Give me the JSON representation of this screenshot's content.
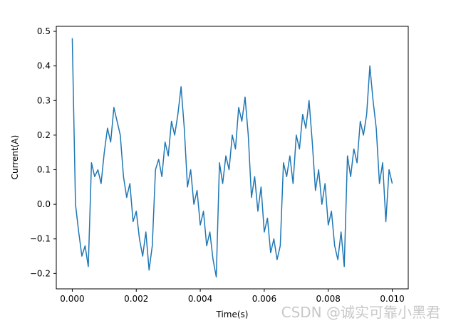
{
  "chart_data": {
    "type": "line",
    "xlabel": "Time(s)",
    "ylabel": "Current(A)",
    "x": [
      0,
      0.0001,
      0.0002,
      0.0003,
      0.0004,
      0.0005,
      0.0006,
      0.0007,
      0.0008,
      0.0009,
      0.001,
      0.0011,
      0.0012,
      0.0013,
      0.0014,
      0.0015,
      0.0016,
      0.0017,
      0.0018,
      0.0019,
      0.002,
      0.0021,
      0.0022,
      0.0023,
      0.0024,
      0.0025,
      0.0026,
      0.0027,
      0.0028,
      0.0029,
      0.003,
      0.0031,
      0.0032,
      0.0033,
      0.0034,
      0.0035,
      0.0036,
      0.0037,
      0.0038,
      0.0039,
      0.004,
      0.0041,
      0.0042,
      0.0043,
      0.0044,
      0.0045,
      0.0046,
      0.0047,
      0.0048,
      0.0049,
      0.005,
      0.0051,
      0.0052,
      0.0053,
      0.0054,
      0.0055,
      0.0056,
      0.0057,
      0.0058,
      0.0059,
      0.006,
      0.0061,
      0.0062,
      0.0063,
      0.0064,
      0.0065,
      0.0066,
      0.0067,
      0.0068,
      0.0069,
      0.007,
      0.0071,
      0.0072,
      0.0073,
      0.0074,
      0.0075,
      0.0076,
      0.0077,
      0.0078,
      0.0079,
      0.008,
      0.0081,
      0.0082,
      0.0083,
      0.0084,
      0.0085,
      0.0086,
      0.0087,
      0.0088,
      0.0089,
      0.009,
      0.0091,
      0.0092,
      0.0093,
      0.0094,
      0.0095,
      0.0096,
      0.0097,
      0.0098,
      0.0099,
      0.01
    ],
    "values": [
      0.48,
      0.0,
      -0.08,
      -0.15,
      -0.12,
      -0.18,
      0.12,
      0.08,
      0.1,
      0.06,
      0.15,
      0.22,
      0.18,
      0.28,
      0.24,
      0.2,
      0.08,
      0.02,
      0.06,
      -0.05,
      -0.02,
      -0.1,
      -0.15,
      -0.08,
      -0.19,
      -0.12,
      0.1,
      0.13,
      0.08,
      0.18,
      0.14,
      0.24,
      0.2,
      0.26,
      0.34,
      0.22,
      0.05,
      0.1,
      0.0,
      0.04,
      -0.06,
      -0.02,
      -0.12,
      -0.08,
      -0.16,
      -0.21,
      0.12,
      0.06,
      0.14,
      0.1,
      0.2,
      0.16,
      0.28,
      0.24,
      0.31,
      0.2,
      0.02,
      0.08,
      -0.02,
      0.05,
      -0.08,
      -0.04,
      -0.14,
      -0.1,
      -0.16,
      -0.12,
      0.12,
      0.08,
      0.14,
      0.06,
      0.2,
      0.16,
      0.26,
      0.22,
      0.3,
      0.18,
      0.04,
      0.1,
      0.0,
      0.06,
      -0.06,
      -0.02,
      -0.12,
      -0.16,
      -0.08,
      -0.18,
      0.14,
      0.08,
      0.16,
      0.12,
      0.24,
      0.2,
      0.26,
      0.4,
      0.3,
      0.22,
      0.06,
      0.12,
      -0.05,
      0.1,
      0.06
    ],
    "color": "#1f77b4",
    "xlim": [
      -0.0005,
      0.0105
    ],
    "ylim": [
      -0.2445,
      0.5145
    ],
    "xticks": [
      {
        "value": 0,
        "label": "0.000"
      },
      {
        "value": 0.002,
        "label": "0.002"
      },
      {
        "value": 0.004,
        "label": "0.004"
      },
      {
        "value": 0.006,
        "label": "0.006"
      },
      {
        "value": 0.008,
        "label": "0.008"
      },
      {
        "value": 0.01,
        "label": "0.010"
      }
    ],
    "yticks": [
      {
        "value": -0.2,
        "label": "−0.2"
      },
      {
        "value": -0.1,
        "label": "−0.1"
      },
      {
        "value": 0,
        "label": "0.0"
      },
      0.1,
      0.2,
      0.3,
      0.4,
      0.5
    ],
    "grid": false
  },
  "watermark": "CSDN @诚实可靠小黑君"
}
